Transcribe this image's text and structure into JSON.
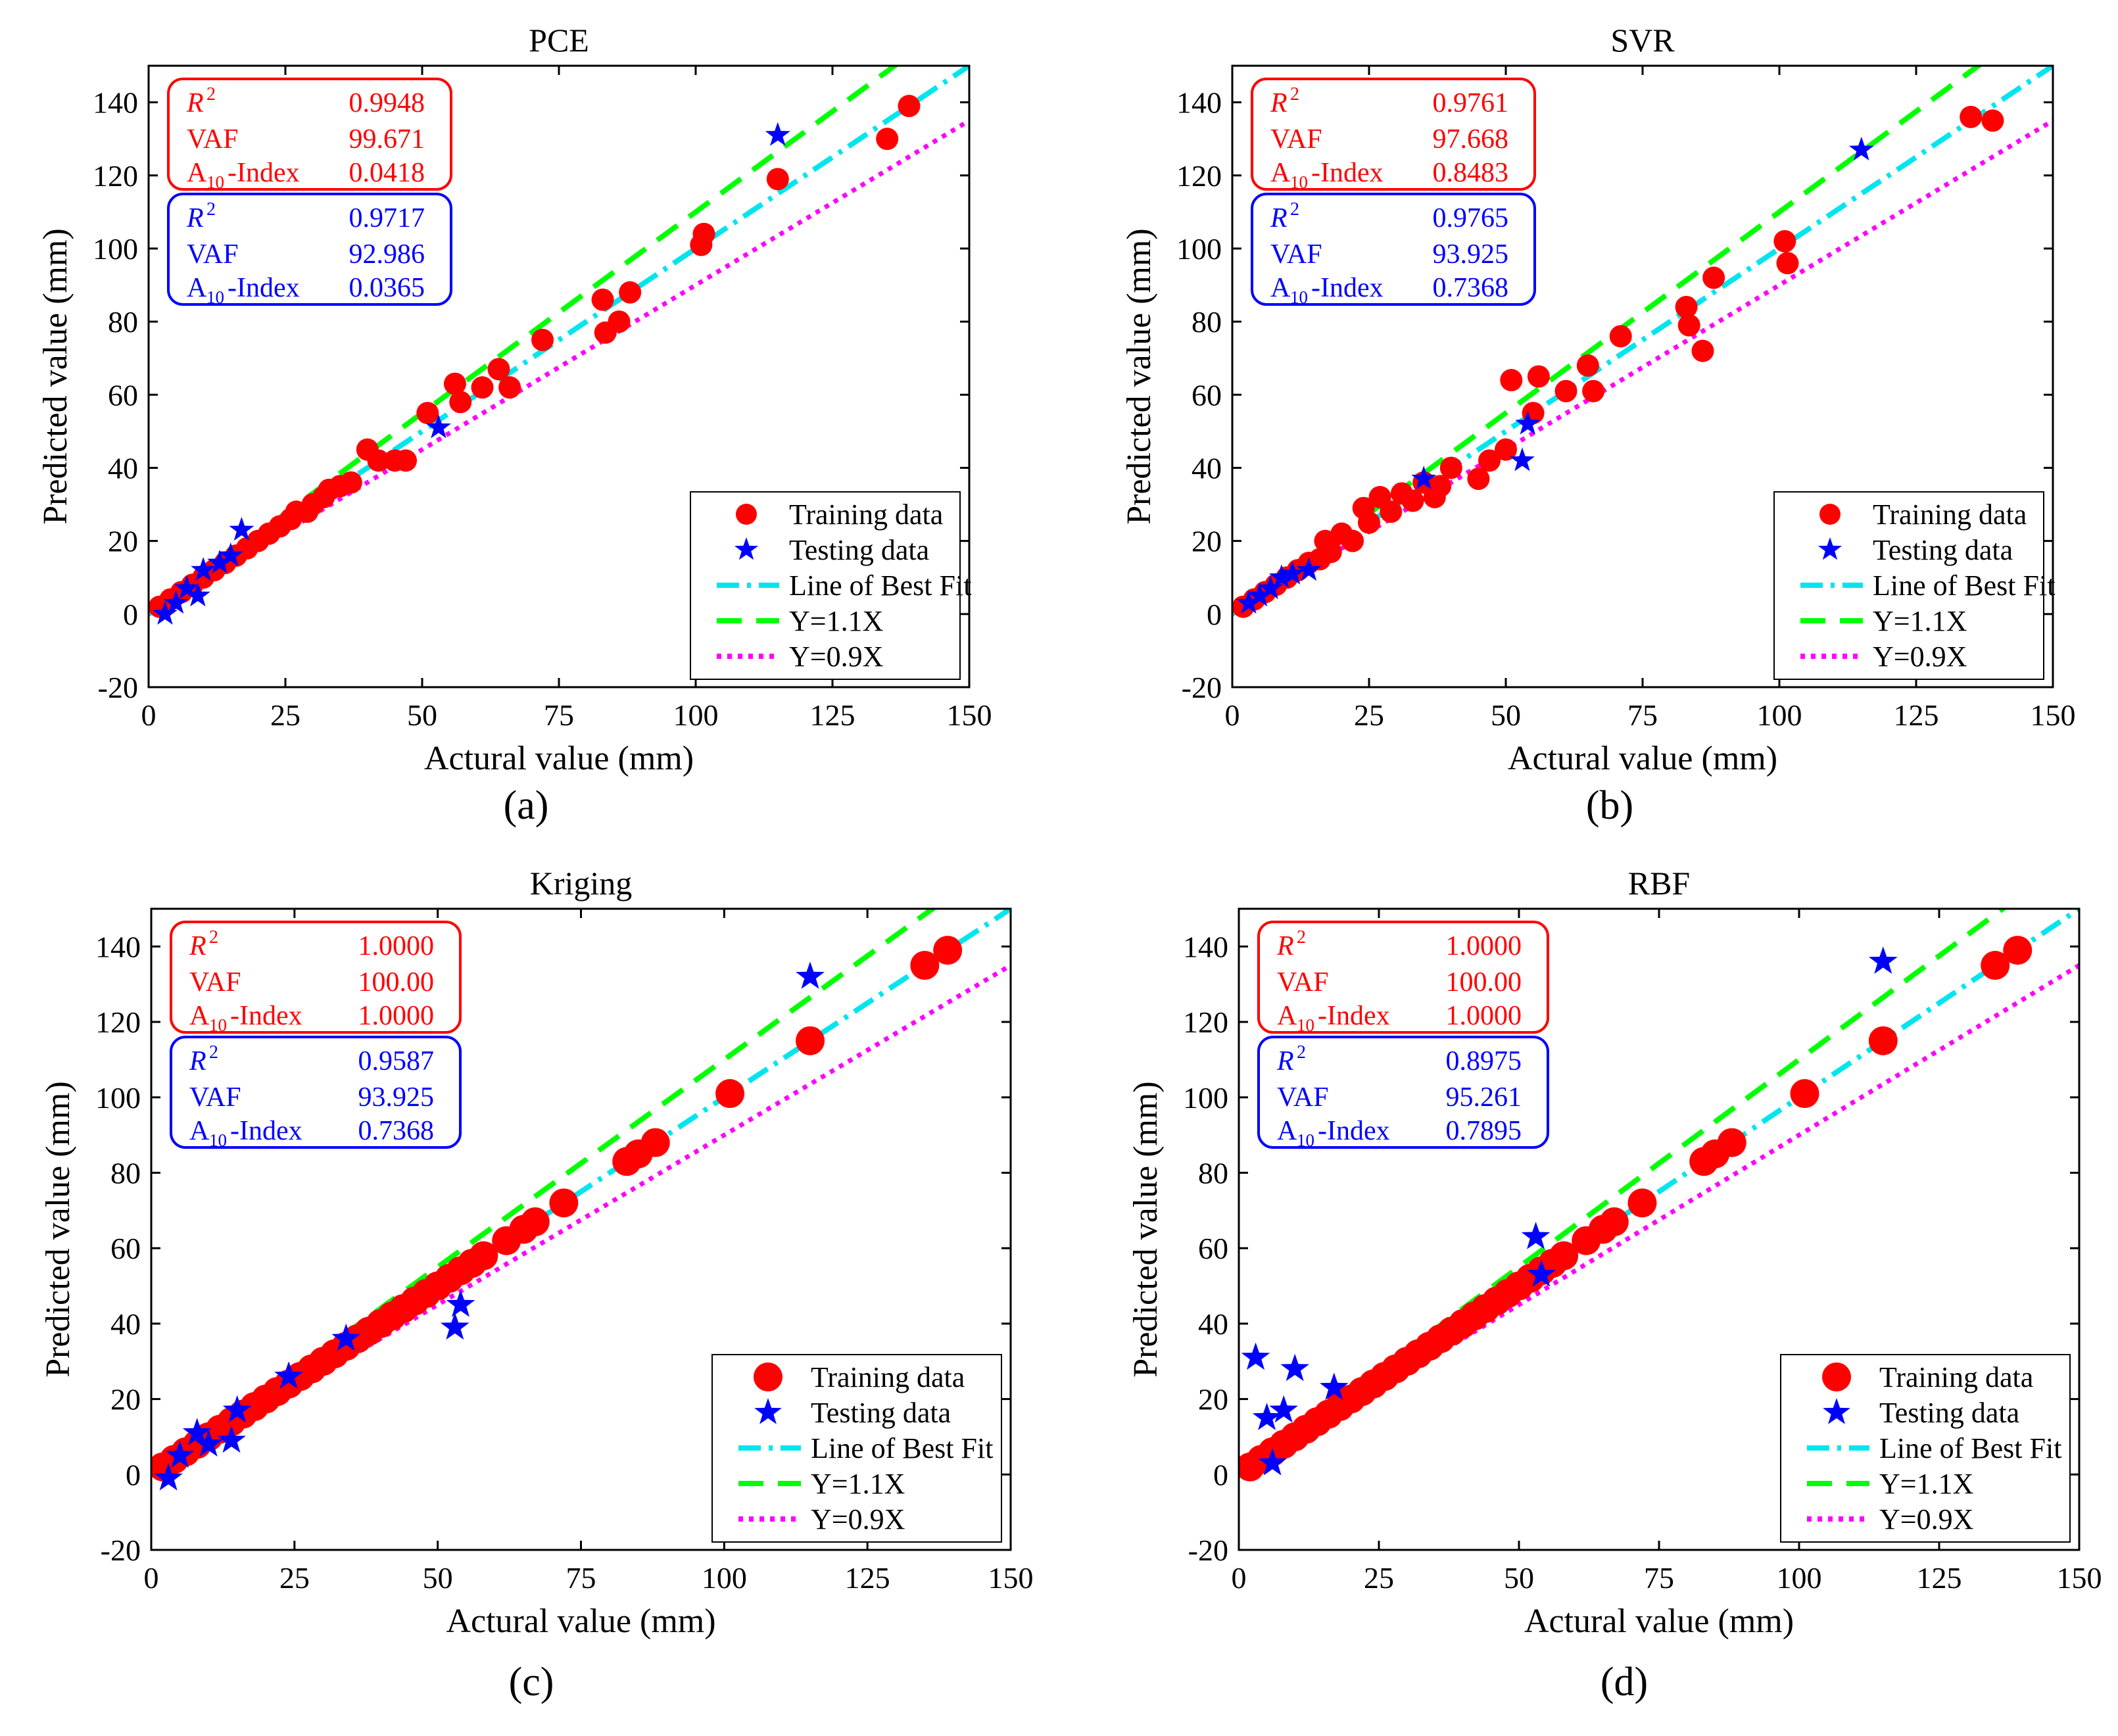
{
  "colors": {
    "training": "#ff0000",
    "testing": "#0000ff",
    "best_fit": "#00e5ee",
    "y11": "#00ff00",
    "y09": "#ff00ff",
    "train_box": "#ff0000",
    "test_box": "#0000ff"
  },
  "legend": {
    "training": "Training data",
    "testing": "Testing data",
    "best_fit": "Line of Best Fit",
    "y11": "Y=1.1X",
    "y09": "Y=0.9X"
  },
  "chart_data": [
    {
      "type": "scatter",
      "panel_label": "(a)",
      "title": "PCE",
      "xlabel": "Actural value (mm)",
      "ylabel": "Predicted value (mm)",
      "xlim": [
        0,
        150
      ],
      "ylim": [
        -20,
        150
      ],
      "xticks": [
        0,
        25,
        50,
        75,
        100,
        125,
        150
      ],
      "yticks": [
        -20,
        0,
        20,
        40,
        60,
        80,
        100,
        120,
        140
      ],
      "legend_position": "bottom-right",
      "stats_training": {
        "r2_label": "R",
        "r2_exp": "2",
        "r2": "0.9948",
        "vaf_label": "VAF",
        "vaf": "99.671",
        "a10_pre": "A",
        "a10_sub": "10",
        "a10_post": "-Index",
        "a10": "0.0418"
      },
      "stats_testing": {
        "r2_label": "R",
        "r2_exp": "2",
        "r2": "0.9717",
        "vaf_label": "VAF",
        "vaf": "92.986",
        "a10_pre": "A",
        "a10_sub": "10",
        "a10_post": "-Index",
        "a10": "0.0365"
      },
      "series": [
        {
          "name": "Training data",
          "marker": "circle",
          "x": [
            2,
            4,
            6,
            8,
            10,
            12,
            14,
            16,
            18,
            20,
            22,
            24,
            26,
            27,
            29,
            30,
            32,
            33,
            35,
            37,
            40,
            42,
            45,
            47,
            51,
            56,
            57,
            61,
            64,
            66,
            72,
            83,
            83.5,
            86,
            88,
            101,
            101.5,
            115,
            135,
            139
          ],
          "y": [
            2,
            4,
            6,
            8,
            10,
            12,
            14,
            16,
            18,
            20,
            22,
            24,
            26,
            28,
            28,
            30,
            32,
            34,
            35,
            36,
            45,
            42,
            42,
            42,
            55,
            63,
            58,
            62,
            67,
            62,
            75,
            86,
            77,
            80,
            88,
            101,
            104,
            119,
            130,
            139
          ]
        },
        {
          "name": "Testing data",
          "marker": "star",
          "x": [
            3,
            5,
            7,
            9,
            10,
            13,
            15,
            17,
            53,
            115
          ],
          "y": [
            0,
            3,
            7,
            5,
            12,
            14,
            16,
            23,
            51,
            131
          ]
        }
      ]
    },
    {
      "type": "scatter",
      "panel_label": "(b)",
      "title": "SVR",
      "xlabel": "Actural value (mm)",
      "ylabel": "Predicted value (mm)",
      "xlim": [
        0,
        150
      ],
      "ylim": [
        -20,
        150
      ],
      "xticks": [
        0,
        25,
        50,
        75,
        100,
        125,
        150
      ],
      "yticks": [
        -20,
        0,
        20,
        40,
        60,
        80,
        100,
        120,
        140
      ],
      "legend_position": "bottom-right",
      "stats_training": {
        "r2_label": "R",
        "r2_exp": "2",
        "r2": "0.9761",
        "vaf_label": "VAF",
        "vaf": "97.668",
        "a10_pre": "A",
        "a10_sub": "10",
        "a10_post": "-Index",
        "a10": "0.8483"
      },
      "stats_testing": {
        "r2_label": "R",
        "r2_exp": "2",
        "r2": "0.9765",
        "vaf_label": "VAF",
        "vaf": "93.925",
        "a10_pre": "A",
        "a10_sub": "10",
        "a10_post": "-Index",
        "a10": "0.7368"
      },
      "series": [
        {
          "name": "Training data",
          "marker": "circle",
          "x": [
            2,
            4,
            6,
            8,
            10,
            12,
            14,
            16,
            17,
            18,
            20,
            22,
            24,
            25,
            27,
            29,
            31,
            33,
            35,
            37,
            38,
            40,
            45,
            47,
            50,
            51,
            55,
            56,
            61,
            65,
            66,
            71,
            83,
            83.5,
            86,
            88,
            101,
            101.5,
            135,
            139
          ],
          "y": [
            2,
            4,
            6,
            8,
            10,
            12,
            14,
            15,
            20,
            17,
            22,
            20,
            29,
            25,
            32,
            28,
            33,
            31,
            36,
            32,
            35,
            40,
            37,
            42,
            45,
            64,
            55,
            65,
            61,
            68,
            61,
            76,
            84,
            79,
            72,
            92,
            102,
            96,
            136,
            135
          ]
        },
        {
          "name": "Testing data",
          "marker": "star",
          "x": [
            3,
            5,
            7,
            9,
            11,
            14,
            35,
            53,
            54,
            115
          ],
          "y": [
            3,
            5,
            7,
            10,
            11,
            12,
            37,
            42,
            52,
            127
          ]
        }
      ]
    },
    {
      "type": "scatter",
      "panel_label": "(c)",
      "title": "Kriging",
      "xlabel": "Actural value (mm)",
      "ylabel": "Predicted value (mm)",
      "xlim": [
        0,
        150
      ],
      "ylim": [
        -20,
        150
      ],
      "xticks": [
        0,
        25,
        50,
        75,
        100,
        125,
        150
      ],
      "yticks": [
        -20,
        0,
        20,
        40,
        60,
        80,
        100,
        120,
        140
      ],
      "legend_position": "bottom-right",
      "stats_training": {
        "r2_label": "R",
        "r2_exp": "2",
        "r2": "1.0000",
        "vaf_label": "VAF",
        "vaf": "100.00",
        "a10_pre": "A",
        "a10_sub": "10",
        "a10_post": "-Index",
        "a10": "1.0000"
      },
      "stats_testing": {
        "r2_label": "R",
        "r2_exp": "2",
        "r2": "0.9587",
        "vaf_label": "VAF",
        "vaf": "93.925",
        "a10_pre": "A",
        "a10_sub": "10",
        "a10_post": "-Index",
        "a10": "0.7368"
      },
      "series": [
        {
          "name": "Training data",
          "marker": "circle",
          "x": [
            2,
            4,
            6,
            8,
            10,
            12,
            14,
            16,
            18,
            20,
            22,
            24,
            26,
            28,
            30,
            32,
            34,
            36,
            38,
            40,
            42,
            44,
            46,
            48,
            50,
            52,
            54,
            56,
            58,
            62,
            65,
            67,
            72,
            83,
            85,
            88,
            101,
            115,
            135,
            139
          ],
          "y": [
            2,
            4,
            6,
            8,
            10,
            12,
            14,
            16,
            18,
            20,
            22,
            24,
            26,
            28,
            30,
            32,
            34,
            36,
            38,
            40,
            42,
            44,
            46,
            48,
            50,
            52,
            54,
            56,
            58,
            62,
            65,
            67,
            72,
            83,
            85,
            88,
            101,
            115,
            135,
            139
          ]
        },
        {
          "name": "Testing data",
          "marker": "star",
          "x": [
            3,
            5,
            8,
            10,
            14,
            15,
            24,
            34,
            53,
            54,
            115
          ],
          "y": [
            -1,
            5,
            11,
            8,
            9,
            17,
            26,
            36,
            39,
            45,
            132
          ]
        }
      ]
    },
    {
      "type": "scatter",
      "panel_label": "(d)",
      "title": "RBF",
      "xlabel": "Actural value (mm)",
      "ylabel": "Predicted value (mm)",
      "xlim": [
        0,
        150
      ],
      "ylim": [
        -20,
        150
      ],
      "xticks": [
        0,
        25,
        50,
        75,
        100,
        125,
        150
      ],
      "yticks": [
        -20,
        0,
        20,
        40,
        60,
        80,
        100,
        120,
        140
      ],
      "legend_position": "bottom-right",
      "stats_training": {
        "r2_label": "R",
        "r2_exp": "2",
        "r2": "1.0000",
        "vaf_label": "VAF",
        "vaf": "100.00",
        "a10_pre": "A",
        "a10_sub": "10",
        "a10_post": "-Index",
        "a10": "1.0000"
      },
      "stats_testing": {
        "r2_label": "R",
        "r2_exp": "2",
        "r2": "0.8975",
        "vaf_label": "VAF",
        "vaf": "95.261",
        "a10_pre": "A",
        "a10_sub": "10",
        "a10_post": "-Index",
        "a10": "0.7895"
      },
      "series": [
        {
          "name": "Training data",
          "marker": "circle",
          "x": [
            2,
            4,
            6,
            8,
            10,
            12,
            14,
            16,
            18,
            20,
            22,
            24,
            26,
            28,
            30,
            32,
            34,
            36,
            38,
            40,
            42,
            44,
            46,
            48,
            50,
            52,
            54,
            56,
            58,
            62,
            65,
            67,
            72,
            83,
            85,
            88,
            101,
            115,
            135,
            139
          ],
          "y": [
            2,
            4,
            6,
            8,
            10,
            12,
            14,
            16,
            18,
            20,
            22,
            24,
            26,
            28,
            30,
            32,
            34,
            36,
            38,
            40,
            42,
            44,
            46,
            48,
            50,
            52,
            54,
            56,
            58,
            62,
            65,
            67,
            72,
            83,
            85,
            88,
            101,
            115,
            135,
            139
          ]
        },
        {
          "name": "Testing data",
          "marker": "star",
          "x": [
            3,
            5,
            6,
            8,
            10,
            17,
            53,
            54,
            115
          ],
          "y": [
            31,
            15,
            3,
            17,
            28,
            23,
            63,
            53,
            136
          ]
        }
      ]
    }
  ]
}
